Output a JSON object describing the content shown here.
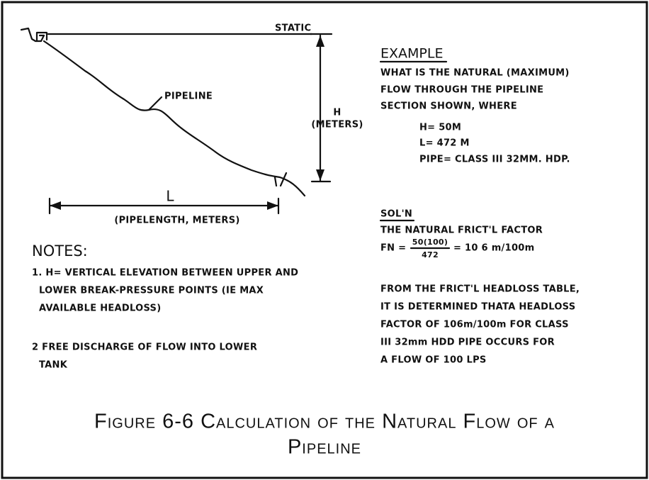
{
  "diagram": {
    "labels": {
      "static": "STATIC",
      "pipeline": "PIPELINE",
      "h": "H",
      "h_unit": "(METERS)",
      "l": "L",
      "l_unit": "(PIPELENGTH, METERS)"
    },
    "notes": {
      "title": "NOTES:",
      "lines": [
        "1. H= VERTICAL ELEVATION BETWEEN UPPER AND",
        "LOWER BREAK-PRESSURE POINTS (IE MAX",
        "AVAILABLE HEADLOSS)",
        "2 FREE DISCHARGE OF FLOW INTO LOWER",
        "TANK"
      ]
    },
    "example": {
      "title": "EXAMPLE",
      "lines": [
        "WHAT IS THE NATURAL (MAXIMUM)",
        "FLOW THROUGH THE PIPELINE",
        "SECTION SHOWN, WHERE"
      ],
      "givens": [
        "H= 50M",
        "L= 472 M",
        "PIPE= CLASS III 32MM. HDP."
      ]
    },
    "solution": {
      "title": "SOL'N",
      "line": "THE NATURAL FRICT'L FACTOR",
      "formula": {
        "lhs": "FN =",
        "numerator": "50(100)",
        "denominator": "472",
        "rhs": "= 10 6 m/100m"
      },
      "lines": [
        "FROM THE FRICT'L HEADLOSS TABLE,",
        "IT IS DETERMINED THATA HEADLOSS",
        "FACTOR OF 106m/100m FOR CLASS",
        "III 32mm HDD PIPE OCCURS FOR",
        "A FLOW OF 100 LPS"
      ]
    },
    "caption": [
      "Figure 6-6  Calculation of the Natural Flow of a",
      "Pipeline"
    ]
  }
}
